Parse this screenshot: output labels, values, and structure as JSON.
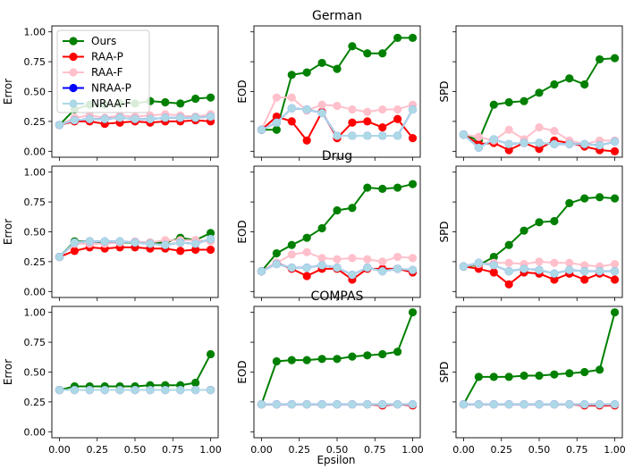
{
  "figure": {
    "xlabel": "Epsilon",
    "row_titles": [
      "German",
      "Drug",
      "COMPAS"
    ],
    "column_ylabels": [
      "Error",
      "EOD",
      "SPD"
    ],
    "x_ticks": [
      "0.00",
      "0.25",
      "0.50",
      "0.75",
      "1.00"
    ],
    "y_ticks": [
      "0.00",
      "0.25",
      "0.50",
      "0.75",
      "1.00"
    ]
  },
  "legend": {
    "entries": [
      {
        "name": "Ours",
        "color": "#008000"
      },
      {
        "name": "RAA-P",
        "color": "#ff0000"
      },
      {
        "name": "RAA-F",
        "color": "#ffc0cb"
      },
      {
        "name": "NRAA-P",
        "color": "#0000ff"
      },
      {
        "name": "NRAA-F",
        "color": "#add8e6"
      }
    ]
  },
  "chart_data": [
    {
      "type": "line",
      "dataset": "German",
      "metric": "Error",
      "title": "",
      "xlabel": "",
      "ylabel": "Error",
      "x": [
        0,
        0.1,
        0.2,
        0.3,
        0.4,
        0.5,
        0.6,
        0.7,
        0.8,
        0.9,
        1.0
      ],
      "xlim": [
        -0.05,
        1.05
      ],
      "ylim": [
        -0.05,
        1.05
      ],
      "series": [
        {
          "name": "Ours",
          "color": "#008000",
          "values": [
            0.22,
            0.35,
            0.39,
            0.39,
            0.4,
            0.4,
            0.42,
            0.41,
            0.4,
            0.44,
            0.45
          ]
        },
        {
          "name": "RAA-P",
          "color": "#ff0000",
          "values": [
            0.22,
            0.25,
            0.25,
            0.23,
            0.24,
            0.25,
            0.24,
            0.25,
            0.25,
            0.26,
            0.25
          ]
        },
        {
          "name": "RAA-F",
          "color": "#ffc0cb",
          "values": [
            0.22,
            0.28,
            0.3,
            0.28,
            0.3,
            0.29,
            0.3,
            0.31,
            0.3,
            0.29,
            0.31
          ]
        },
        {
          "name": "NRAA-P",
          "color": "#0000ff",
          "values": [
            0.22,
            0.26,
            0.27,
            0.27,
            0.28,
            0.27,
            0.27,
            0.28,
            0.28,
            0.28,
            0.29
          ]
        },
        {
          "name": "NRAA-F",
          "color": "#add8e6",
          "values": [
            0.22,
            0.26,
            0.27,
            0.27,
            0.28,
            0.27,
            0.27,
            0.28,
            0.28,
            0.28,
            0.29
          ]
        }
      ]
    },
    {
      "type": "line",
      "dataset": "German",
      "metric": "EOD",
      "title": "German",
      "xlabel": "",
      "ylabel": "EOD",
      "x": [
        0,
        0.1,
        0.2,
        0.3,
        0.4,
        0.5,
        0.6,
        0.7,
        0.8,
        0.9,
        1.0
      ],
      "xlim": [
        -0.05,
        1.05
      ],
      "ylim": [
        -0.05,
        1.05
      ],
      "series": [
        {
          "name": "Ours",
          "color": "#008000",
          "values": [
            0.18,
            0.18,
            0.64,
            0.66,
            0.74,
            0.69,
            0.88,
            0.82,
            0.82,
            0.95,
            0.95
          ]
        },
        {
          "name": "RAA-P",
          "color": "#ff0000",
          "values": [
            0.18,
            0.29,
            0.25,
            0.09,
            0.33,
            0.11,
            0.24,
            0.25,
            0.2,
            0.27,
            0.11
          ]
        },
        {
          "name": "RAA-F",
          "color": "#ffc0cb",
          "values": [
            0.18,
            0.45,
            0.45,
            0.34,
            0.39,
            0.38,
            0.35,
            0.33,
            0.35,
            0.35,
            0.39
          ]
        },
        {
          "name": "NRAA-P",
          "color": "#0000ff",
          "values": [
            0.18,
            0.24,
            0.36,
            0.35,
            0.32,
            0.13,
            0.13,
            0.13,
            0.13,
            0.13,
            0.35
          ]
        },
        {
          "name": "NRAA-F",
          "color": "#add8e6",
          "values": [
            0.18,
            0.24,
            0.36,
            0.35,
            0.32,
            0.13,
            0.13,
            0.13,
            0.13,
            0.13,
            0.35
          ]
        }
      ]
    },
    {
      "type": "line",
      "dataset": "German",
      "metric": "SPD",
      "title": "",
      "xlabel": "",
      "ylabel": "SPD",
      "x": [
        0,
        0.1,
        0.2,
        0.3,
        0.4,
        0.5,
        0.6,
        0.7,
        0.8,
        0.9,
        1.0
      ],
      "xlim": [
        -0.05,
        1.05
      ],
      "ylim": [
        -0.05,
        1.05
      ],
      "series": [
        {
          "name": "Ours",
          "color": "#008000",
          "values": [
            0.14,
            0.09,
            0.39,
            0.41,
            0.42,
            0.49,
            0.56,
            0.61,
            0.56,
            0.77,
            0.78
          ]
        },
        {
          "name": "RAA-P",
          "color": "#ff0000",
          "values": [
            0.14,
            0.06,
            0.07,
            0.01,
            0.07,
            0.02,
            0.09,
            0.07,
            0.04,
            0.01,
            0.0
          ]
        },
        {
          "name": "RAA-F",
          "color": "#ffc0cb",
          "values": [
            0.14,
            0.12,
            0.09,
            0.18,
            0.1,
            0.2,
            0.17,
            0.09,
            0.06,
            0.09,
            0.09
          ]
        },
        {
          "name": "NRAA-P",
          "color": "#0000ff",
          "values": [
            0.14,
            0.03,
            0.1,
            0.06,
            0.07,
            0.07,
            0.06,
            0.06,
            0.06,
            0.05,
            0.08
          ]
        },
        {
          "name": "NRAA-F",
          "color": "#add8e6",
          "values": [
            0.14,
            0.03,
            0.1,
            0.06,
            0.07,
            0.07,
            0.06,
            0.06,
            0.06,
            0.05,
            0.08
          ]
        }
      ]
    },
    {
      "type": "line",
      "dataset": "Drug",
      "metric": "Error",
      "title": "",
      "xlabel": "",
      "ylabel": "Error",
      "x": [
        0,
        0.1,
        0.2,
        0.3,
        0.4,
        0.5,
        0.6,
        0.7,
        0.8,
        0.9,
        1.0
      ],
      "xlim": [
        -0.05,
        1.05
      ],
      "ylim": [
        -0.05,
        1.05
      ],
      "series": [
        {
          "name": "Ours",
          "color": "#008000",
          "values": [
            0.29,
            0.42,
            0.42,
            0.41,
            0.41,
            0.41,
            0.41,
            0.41,
            0.45,
            0.43,
            0.49
          ]
        },
        {
          "name": "RAA-P",
          "color": "#ff0000",
          "values": [
            0.29,
            0.34,
            0.37,
            0.36,
            0.37,
            0.37,
            0.36,
            0.36,
            0.34,
            0.35,
            0.35
          ]
        },
        {
          "name": "RAA-F",
          "color": "#ffc0cb",
          "values": [
            0.29,
            0.4,
            0.4,
            0.4,
            0.41,
            0.42,
            0.41,
            0.43,
            0.43,
            0.43,
            0.42
          ]
        },
        {
          "name": "NRAA-P",
          "color": "#0000ff",
          "values": [
            0.29,
            0.41,
            0.42,
            0.42,
            0.42,
            0.41,
            0.4,
            0.39,
            0.41,
            0.4,
            0.44
          ]
        },
        {
          "name": "NRAA-F",
          "color": "#add8e6",
          "values": [
            0.29,
            0.41,
            0.42,
            0.42,
            0.42,
            0.41,
            0.4,
            0.39,
            0.41,
            0.4,
            0.44
          ]
        }
      ]
    },
    {
      "type": "line",
      "dataset": "Drug",
      "metric": "EOD",
      "title": "Drug",
      "xlabel": "",
      "ylabel": "EOD",
      "x": [
        0,
        0.1,
        0.2,
        0.3,
        0.4,
        0.5,
        0.6,
        0.7,
        0.8,
        0.9,
        1.0
      ],
      "xlim": [
        -0.05,
        1.05
      ],
      "ylim": [
        -0.05,
        1.05
      ],
      "series": [
        {
          "name": "Ours",
          "color": "#008000",
          "values": [
            0.17,
            0.32,
            0.39,
            0.45,
            0.53,
            0.68,
            0.7,
            0.87,
            0.86,
            0.87,
            0.9
          ]
        },
        {
          "name": "RAA-P",
          "color": "#ff0000",
          "values": [
            0.17,
            0.24,
            0.19,
            0.13,
            0.19,
            0.19,
            0.1,
            0.19,
            0.19,
            0.19,
            0.16
          ]
        },
        {
          "name": "RAA-F",
          "color": "#ffc0cb",
          "values": [
            0.17,
            0.24,
            0.31,
            0.33,
            0.28,
            0.27,
            0.28,
            0.27,
            0.25,
            0.29,
            0.28
          ]
        },
        {
          "name": "NRAA-P",
          "color": "#0000ff",
          "values": [
            0.17,
            0.23,
            0.2,
            0.2,
            0.22,
            0.2,
            0.14,
            0.2,
            0.17,
            0.19,
            0.18
          ]
        },
        {
          "name": "NRAA-F",
          "color": "#add8e6",
          "values": [
            0.17,
            0.23,
            0.2,
            0.2,
            0.22,
            0.2,
            0.14,
            0.2,
            0.17,
            0.19,
            0.18
          ]
        }
      ]
    },
    {
      "type": "line",
      "dataset": "Drug",
      "metric": "SPD",
      "title": "",
      "xlabel": "",
      "ylabel": "SPD",
      "x": [
        0,
        0.1,
        0.2,
        0.3,
        0.4,
        0.5,
        0.6,
        0.7,
        0.8,
        0.9,
        1.0
      ],
      "xlim": [
        -0.05,
        1.05
      ],
      "ylim": [
        -0.05,
        1.05
      ],
      "series": [
        {
          "name": "Ours",
          "color": "#008000",
          "values": [
            0.21,
            0.22,
            0.29,
            0.39,
            0.51,
            0.58,
            0.59,
            0.74,
            0.78,
            0.79,
            0.78
          ]
        },
        {
          "name": "RAA-P",
          "color": "#ff0000",
          "values": [
            0.21,
            0.19,
            0.16,
            0.06,
            0.16,
            0.15,
            0.1,
            0.15,
            0.1,
            0.15,
            0.1
          ]
        },
        {
          "name": "RAA-F",
          "color": "#ffc0cb",
          "values": [
            0.21,
            0.23,
            0.24,
            0.24,
            0.23,
            0.25,
            0.24,
            0.24,
            0.22,
            0.21,
            0.23
          ]
        },
        {
          "name": "NRAA-P",
          "color": "#0000ff",
          "values": [
            0.21,
            0.24,
            0.22,
            0.17,
            0.19,
            0.18,
            0.15,
            0.18,
            0.17,
            0.17,
            0.17
          ]
        },
        {
          "name": "NRAA-F",
          "color": "#add8e6",
          "values": [
            0.21,
            0.24,
            0.22,
            0.17,
            0.19,
            0.18,
            0.15,
            0.18,
            0.17,
            0.17,
            0.17
          ]
        }
      ]
    },
    {
      "type": "line",
      "dataset": "COMPAS",
      "metric": "Error",
      "title": "",
      "xlabel": "Epsilon",
      "ylabel": "Error",
      "x": [
        0,
        0.1,
        0.2,
        0.3,
        0.4,
        0.5,
        0.6,
        0.7,
        0.8,
        0.9,
        1.0
      ],
      "xlim": [
        -0.05,
        1.05
      ],
      "ylim": [
        -0.05,
        1.05
      ],
      "series": [
        {
          "name": "Ours",
          "color": "#008000",
          "values": [
            0.35,
            0.38,
            0.38,
            0.38,
            0.38,
            0.38,
            0.39,
            0.39,
            0.39,
            0.41,
            0.65
          ]
        },
        {
          "name": "RAA-P",
          "color": "#ff0000",
          "values": [
            0.35,
            0.35,
            0.35,
            0.35,
            0.35,
            0.35,
            0.35,
            0.35,
            0.35,
            0.35,
            0.35
          ]
        },
        {
          "name": "RAA-F",
          "color": "#ffc0cb",
          "values": [
            0.35,
            0.35,
            0.35,
            0.35,
            0.35,
            0.35,
            0.35,
            0.35,
            0.35,
            0.35,
            0.35
          ]
        },
        {
          "name": "NRAA-P",
          "color": "#0000ff",
          "values": [
            0.35,
            0.35,
            0.35,
            0.35,
            0.35,
            0.35,
            0.35,
            0.35,
            0.35,
            0.35,
            0.35
          ]
        },
        {
          "name": "NRAA-F",
          "color": "#add8e6",
          "values": [
            0.35,
            0.35,
            0.35,
            0.35,
            0.35,
            0.35,
            0.35,
            0.35,
            0.35,
            0.35,
            0.35
          ]
        }
      ]
    },
    {
      "type": "line",
      "dataset": "COMPAS",
      "metric": "EOD",
      "title": "COMPAS",
      "xlabel": "Epsilon",
      "ylabel": "EOD",
      "x": [
        0,
        0.1,
        0.2,
        0.3,
        0.4,
        0.5,
        0.6,
        0.7,
        0.8,
        0.9,
        1.0
      ],
      "xlim": [
        -0.05,
        1.05
      ],
      "ylim": [
        -0.05,
        1.05
      ],
      "series": [
        {
          "name": "Ours",
          "color": "#008000",
          "values": [
            0.23,
            0.59,
            0.6,
            0.6,
            0.61,
            0.61,
            0.63,
            0.64,
            0.65,
            0.67,
            1.0
          ]
        },
        {
          "name": "RAA-P",
          "color": "#ff0000",
          "values": [
            0.23,
            0.23,
            0.23,
            0.23,
            0.23,
            0.23,
            0.23,
            0.23,
            0.22,
            0.23,
            0.22
          ]
        },
        {
          "name": "RAA-F",
          "color": "#ffc0cb",
          "values": [
            0.23,
            0.23,
            0.23,
            0.23,
            0.23,
            0.23,
            0.23,
            0.23,
            0.23,
            0.23,
            0.23
          ]
        },
        {
          "name": "NRAA-P",
          "color": "#0000ff",
          "values": [
            0.23,
            0.23,
            0.23,
            0.23,
            0.23,
            0.23,
            0.23,
            0.23,
            0.23,
            0.23,
            0.23
          ]
        },
        {
          "name": "NRAA-F",
          "color": "#add8e6",
          "values": [
            0.23,
            0.23,
            0.23,
            0.23,
            0.23,
            0.23,
            0.23,
            0.23,
            0.23,
            0.23,
            0.23
          ]
        }
      ]
    },
    {
      "type": "line",
      "dataset": "COMPAS",
      "metric": "SPD",
      "title": "",
      "xlabel": "Epsilon",
      "ylabel": "SPD",
      "x": [
        0,
        0.1,
        0.2,
        0.3,
        0.4,
        0.5,
        0.6,
        0.7,
        0.8,
        0.9,
        1.0
      ],
      "xlim": [
        -0.05,
        1.05
      ],
      "ylim": [
        -0.05,
        1.05
      ],
      "series": [
        {
          "name": "Ours",
          "color": "#008000",
          "values": [
            0.23,
            0.46,
            0.46,
            0.46,
            0.47,
            0.47,
            0.48,
            0.49,
            0.5,
            0.52,
            1.0
          ]
        },
        {
          "name": "RAA-P",
          "color": "#ff0000",
          "values": [
            0.23,
            0.23,
            0.23,
            0.23,
            0.23,
            0.23,
            0.23,
            0.23,
            0.22,
            0.22,
            0.22
          ]
        },
        {
          "name": "RAA-F",
          "color": "#ffc0cb",
          "values": [
            0.23,
            0.23,
            0.23,
            0.23,
            0.23,
            0.23,
            0.23,
            0.23,
            0.23,
            0.23,
            0.23
          ]
        },
        {
          "name": "NRAA-P",
          "color": "#0000ff",
          "values": [
            0.23,
            0.23,
            0.23,
            0.23,
            0.23,
            0.23,
            0.23,
            0.23,
            0.23,
            0.23,
            0.23
          ]
        },
        {
          "name": "NRAA-F",
          "color": "#add8e6",
          "values": [
            0.23,
            0.23,
            0.23,
            0.23,
            0.23,
            0.23,
            0.23,
            0.23,
            0.23,
            0.23,
            0.23
          ]
        }
      ]
    }
  ]
}
